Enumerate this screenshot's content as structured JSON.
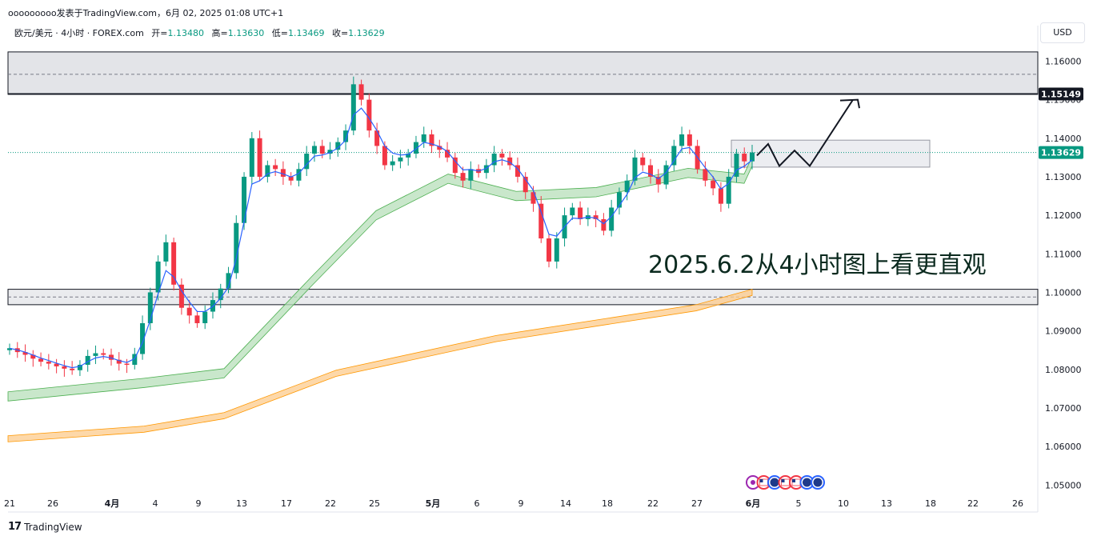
{
  "header": {
    "publisher_line": "ooooooooo发表于TradingView.com，6月 02, 2025 01:08 UTC+1"
  },
  "ohlc": {
    "symbol": "欧元/美元 · 4小时 · FOREX.com",
    "open_label": "开=",
    "open": "1.13480",
    "high_label": "高=",
    "high": "1.13630",
    "low_label": "低=",
    "low": "1.13469",
    "close_label": "收=",
    "close": "1.13629"
  },
  "currency_button": "USD",
  "footer": {
    "logo": "17",
    "brand": "TradingView"
  },
  "annotation": "2025.6.2从4小时图上看更直观",
  "price_tags": {
    "resistance": "1.15149",
    "last": "1.13629"
  },
  "colors": {
    "up": "#089981",
    "down": "#f23645",
    "ma_fast": "#2962ff",
    "band_green": "#b7dfb9",
    "band_orange": "#fccb8c",
    "last_tag": "#089981",
    "res_tag": "#131722"
  },
  "icons": [
    "calendar-event-icon",
    "us-flag-icon",
    "eu-flag-icon",
    "us-flag-icon",
    "us-flag-icon",
    "eu-flag-icon",
    "eu-flag-icon"
  ],
  "chart_data": {
    "type": "candlestick",
    "title": "",
    "ylim": [
      1.043,
      1.163
    ],
    "y_ticks": [
      "1.16000",
      "1.15000",
      "1.14000",
      "1.13000",
      "1.12000",
      "1.11000",
      "1.10000",
      "1.09000",
      "1.08000",
      "1.07000",
      "1.06000",
      "1.05000"
    ],
    "x_ticks": [
      "21",
      "26",
      "4月",
      "4",
      "9",
      "13",
      "17",
      "22",
      "25",
      "5月",
      "6",
      "9",
      "14",
      "18",
      "22",
      "27",
      "6月",
      "5",
      "10",
      "13",
      "18",
      "22",
      "26"
    ],
    "zones": [
      {
        "name": "upper-zone",
        "from": 1.1514,
        "to": 1.1624
      },
      {
        "name": "lower-zone",
        "from": 1.0968,
        "to": 1.1008
      },
      {
        "name": "consolidation-box",
        "from": 1.1325,
        "to": 1.1395
      }
    ],
    "levels": [
      1.15149,
      1.1566,
      1.0988
    ],
    "series": [
      {
        "name": "close",
        "values": [
          1.0855,
          1.0845,
          1.0838,
          1.0828,
          1.082,
          1.0815,
          1.0808,
          1.0802,
          1.0798,
          1.0812,
          1.0835,
          1.0842,
          1.0838,
          1.0825,
          1.0815,
          1.0812,
          1.084,
          1.092,
          1.1,
          1.108,
          1.113,
          1.102,
          1.096,
          1.094,
          1.092,
          1.095,
          1.098,
          1.101,
          1.105,
          1.118,
          1.13,
          1.14,
          1.13,
          1.133,
          1.132,
          1.13,
          1.129,
          1.132,
          1.136,
          1.138,
          1.136,
          1.137,
          1.139,
          1.142,
          1.154,
          1.15,
          1.142,
          1.138,
          1.133,
          1.134,
          1.135,
          1.136,
          1.139,
          1.141,
          1.138,
          1.137,
          1.135,
          1.131,
          1.129,
          1.132,
          1.131,
          1.133,
          1.136,
          1.135,
          1.133,
          1.13,
          1.126,
          1.123,
          1.114,
          1.108,
          1.114,
          1.12,
          1.122,
          1.119,
          1.12,
          1.119,
          1.116,
          1.122,
          1.126,
          1.129,
          1.135,
          1.133,
          1.13,
          1.128,
          1.133,
          1.138,
          1.141,
          1.138,
          1.132,
          1.129,
          1.127,
          1.123,
          1.13,
          1.136,
          1.134,
          1.1363
        ]
      },
      {
        "name": "band-green",
        "values": [
          1.073,
          1.0765,
          1.079,
          1.103,
          1.12,
          1.1295,
          1.125,
          1.126,
          1.131,
          1.1295,
          1.134
        ]
      },
      {
        "name": "band-orange",
        "values": [
          1.062,
          1.0645,
          1.068,
          1.079,
          1.088,
          1.0925,
          1.096,
          1.1
        ]
      }
    ]
  }
}
